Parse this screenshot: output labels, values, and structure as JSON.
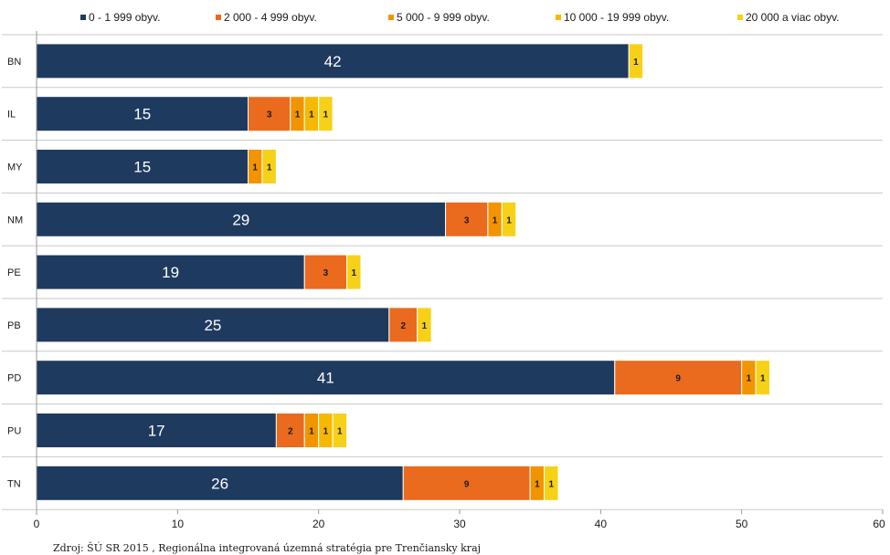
{
  "chart_data": {
    "type": "bar",
    "orientation": "horizontal",
    "stacked": true,
    "categories": [
      "BN",
      "IL",
      "MY",
      "NM",
      "PE",
      "PB",
      "PD",
      "PU",
      "TN"
    ],
    "series": [
      {
        "name": "0 - 1 999 obyv.",
        "color": "#1f3a5f",
        "values": [
          42,
          15,
          15,
          29,
          19,
          25,
          41,
          17,
          26
        ]
      },
      {
        "name": "2 000 - 4 999 obyv.",
        "color": "#ea6a1e",
        "values": [
          0,
          3,
          0,
          3,
          3,
          2,
          9,
          2,
          9
        ]
      },
      {
        "name": "5 000 - 9 999 obyv.",
        "color": "#f29400",
        "values": [
          0,
          1,
          1,
          1,
          0,
          0,
          1,
          1,
          1
        ]
      },
      {
        "name": "10 000 - 19 999 obyv.",
        "color": "#f6b800",
        "values": [
          0,
          1,
          0,
          0,
          0,
          0,
          0,
          1,
          0
        ]
      },
      {
        "name": "20 000 a viac obyv.",
        "color": "#f7d117",
        "values": [
          1,
          1,
          1,
          1,
          1,
          1,
          1,
          1,
          1
        ]
      }
    ],
    "xlim": [
      0,
      60
    ],
    "xticks": [
      "0",
      "10",
      "20",
      "30",
      "40",
      "50",
      "60"
    ],
    "legend_position": "top",
    "grid": "horizontal separators between categories",
    "source": "Zdroj: ŠÚ SR 2015 , Regionálna integrovaná územná stratégia pre Trenčiansky kraj"
  }
}
